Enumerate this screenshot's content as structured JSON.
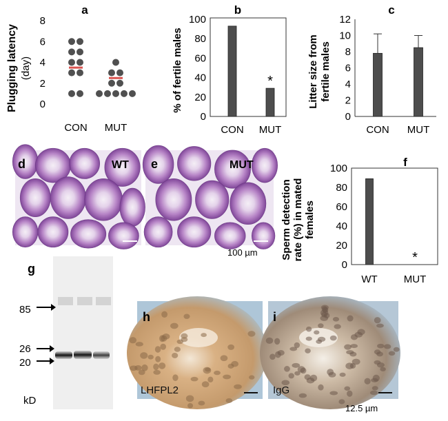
{
  "panel_labels": {
    "a": "a",
    "b": "b",
    "c": "c",
    "d": "d",
    "e": "e",
    "f": "f",
    "g": "g",
    "h": "h",
    "i": "i"
  },
  "micrograph_labels": {
    "d": "WT",
    "e": "MUT",
    "h": "LHFPL2",
    "i": "IgG"
  },
  "scale_bars": {
    "he": "100 µm",
    "ihc": "12.5 µm"
  },
  "blot": {
    "markers": [
      "85",
      "26",
      "20"
    ],
    "unit": "kD"
  },
  "colors": {
    "bar": "#4d4d4d",
    "dot": "#505050",
    "mean_line": "#d9534f",
    "he_stain": "#c8a6d2",
    "ihc_stain": "#c49a6c"
  },
  "chart_data": [
    {
      "id": "a",
      "type": "scatter",
      "categories": [
        "CON",
        "MUT"
      ],
      "ylabel_line1": "Plugging latency",
      "ylabel_line2": "(day)",
      "ylim": [
        0,
        8
      ],
      "yticks": [
        0,
        2,
        4,
        6,
        8
      ],
      "points": {
        "CON": [
          [
            6,
            6
          ],
          [
            5,
            5
          ],
          [
            4,
            4
          ],
          [
            3,
            3
          ],
          [
            1,
            1
          ]
        ],
        "MUT": [
          [
            4
          ],
          [
            3,
            3
          ],
          [
            2,
            2
          ],
          [
            1,
            1,
            1,
            1,
            1
          ]
        ]
      },
      "means": [
        3.5,
        2.5
      ]
    },
    {
      "id": "b",
      "type": "bar",
      "categories": [
        "CON",
        "MUT"
      ],
      "values": [
        93,
        29
      ],
      "ylabel": "% of fertile males",
      "ylim": [
        0,
        100
      ],
      "yticks": [
        0,
        20,
        40,
        60,
        80,
        100
      ],
      "annotations": [
        {
          "category": "MUT",
          "text": "*"
        }
      ]
    },
    {
      "id": "c",
      "type": "bar",
      "categories": [
        "CON",
        "MUT"
      ],
      "values": [
        7.8,
        8.5
      ],
      "errors": [
        2.4,
        1.5
      ],
      "ylabel_line1": "Litter size from",
      "ylabel_line2": "fertile males",
      "ylim": [
        0,
        12
      ],
      "yticks": [
        0,
        2,
        4,
        6,
        8,
        10,
        12
      ]
    },
    {
      "id": "f",
      "type": "bar",
      "categories": [
        "WT",
        "MUT"
      ],
      "values": [
        89,
        0
      ],
      "ylabel_line1": "Sperm detection",
      "ylabel_line2": "rate (%) in mated",
      "ylabel_line3": "females",
      "ylim": [
        0,
        100
      ],
      "yticks": [
        0,
        20,
        40,
        60,
        80,
        100
      ],
      "annotations": [
        {
          "category": "MUT",
          "text": "*"
        }
      ]
    }
  ]
}
